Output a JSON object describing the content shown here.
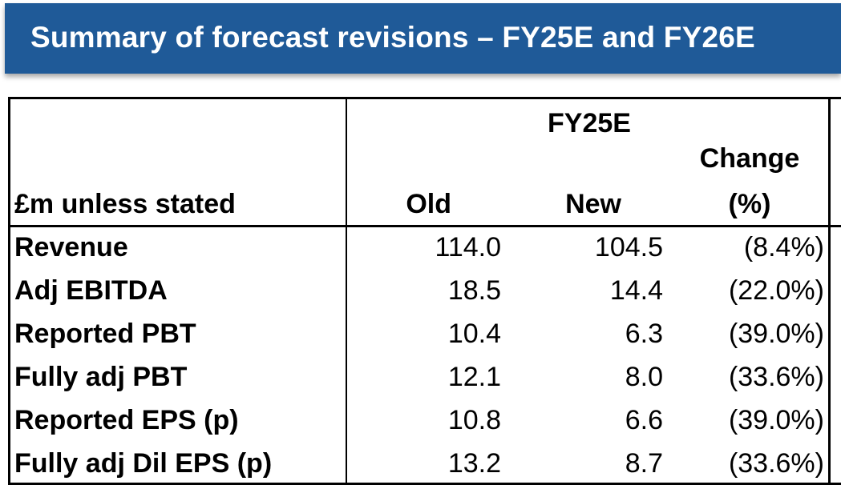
{
  "title": "Summary of forecast revisions – FY25E and FY26E",
  "table": {
    "period_label": "FY25E",
    "units_label": "£m unless stated",
    "col_old": "Old",
    "col_new": "New",
    "col_change_line1": "Change",
    "col_change_line2": "(%)",
    "rows": [
      {
        "label": "Revenue",
        "old": "114.0",
        "new": "104.5",
        "change": "(8.4%)"
      },
      {
        "label": "Adj EBITDA",
        "old": "18.5",
        "new": "14.4",
        "change": "(22.0%)"
      },
      {
        "label": "Reported PBT",
        "old": "10.4",
        "new": "6.3",
        "change": "(39.0%)"
      },
      {
        "label": "Fully adj PBT",
        "old": "12.1",
        "new": "8.0",
        "change": "(33.6%)"
      },
      {
        "label": "Reported EPS (p)",
        "old": "10.8",
        "new": "6.6",
        "change": "(39.0%)"
      },
      {
        "label": "Fully adj Dil EPS (p)",
        "old": "13.2",
        "new": "8.7",
        "change": "(33.6%)"
      }
    ]
  },
  "colors": {
    "banner": "#1f5a98",
    "banner_text": "#ffffff",
    "text": "#000000"
  }
}
